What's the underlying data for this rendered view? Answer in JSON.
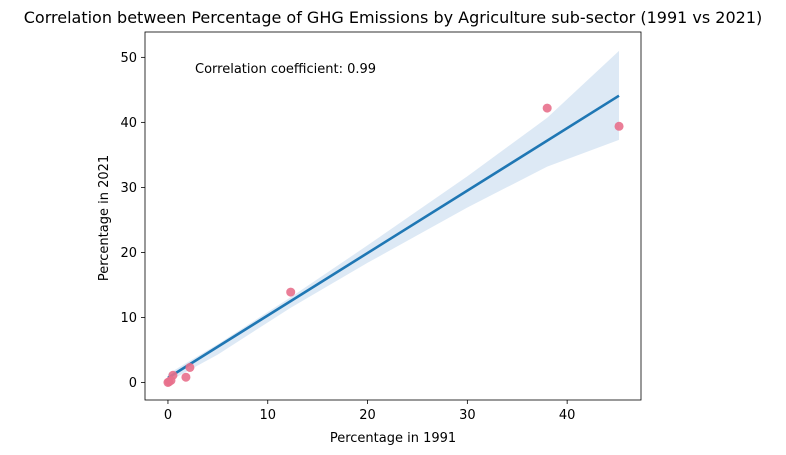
{
  "chart_data": {
    "type": "scatter",
    "title": "Correlation between Percentage of GHG Emissions by Agriculture sub-sector (1991 vs 2021)",
    "xlabel": "Percentage in 1991",
    "ylabel": "Percentage in 2021",
    "xlim": [
      -2.3,
      47.4
    ],
    "ylim": [
      -2.7,
      53.9
    ],
    "xticks": [
      0,
      10,
      20,
      30,
      40
    ],
    "yticks": [
      0,
      10,
      20,
      30,
      40,
      50
    ],
    "grid": false,
    "annotation": "Correlation coefficient: 0.99",
    "points": [
      {
        "x": 0.0,
        "y": 0.0
      },
      {
        "x": 0.1,
        "y": 0.1
      },
      {
        "x": 0.3,
        "y": 0.3
      },
      {
        "x": 0.5,
        "y": 1.1
      },
      {
        "x": 1.8,
        "y": 0.8
      },
      {
        "x": 2.2,
        "y": 2.3
      },
      {
        "x": 12.3,
        "y": 13.9
      },
      {
        "x": 38.0,
        "y": 42.2
      },
      {
        "x": 45.2,
        "y": 39.4
      }
    ],
    "regression": {
      "x": [
        0,
        45.2
      ],
      "y": [
        0.7,
        44.1
      ]
    },
    "confidence_band": {
      "x": [
        0,
        5,
        12.3,
        20,
        30,
        38,
        45.2
      ],
      "upper": [
        1.3,
        5.9,
        13.1,
        21.1,
        31.7,
        40.7,
        51.0
      ],
      "lower": [
        0.1,
        4.3,
        11.5,
        18.4,
        26.9,
        33.2,
        37.3
      ]
    },
    "colors": {
      "points": "#e8708c",
      "line": "#1f77b4",
      "band": "#c6dbef"
    }
  }
}
